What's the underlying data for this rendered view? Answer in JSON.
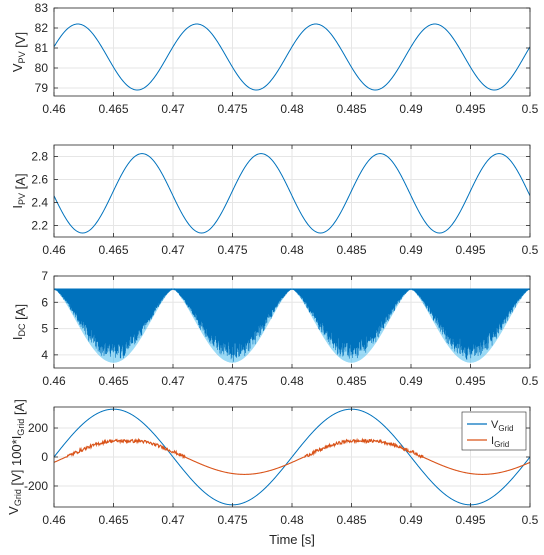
{
  "colors": {
    "series_blue": "#0072BD",
    "series_light_blue": "#4DBEEE",
    "series_orange": "#D95319",
    "grid": "#e6e6e6",
    "axis": "#262626"
  },
  "chart_data": [
    {
      "type": "line",
      "ylabel": "V",
      "ylabel_sub": "PV",
      "ylabel_suffix": " [V]",
      "xlabel": "",
      "xlim": [
        0.46,
        0.5
      ],
      "ylim": [
        78.6,
        83
      ],
      "xticks": [
        0.46,
        0.465,
        0.47,
        0.475,
        0.48,
        0.485,
        0.49,
        0.495,
        0.5
      ],
      "xtick_labels": [
        "0.46",
        "0.465",
        "0.47",
        "0.475",
        "0.48",
        "0.485",
        "0.49",
        "0.495",
        "0.5"
      ],
      "yticks": [
        79,
        80,
        81,
        82,
        83
      ],
      "ytick_labels": [
        "79",
        "80",
        "81",
        "82",
        "83"
      ],
      "grid": true,
      "series": [
        {
          "style": "sine",
          "mean": 80.55,
          "amplitude": 1.65,
          "period": 0.01,
          "peak_at": 0.462,
          "color": "#0072BD"
        }
      ]
    },
    {
      "type": "line",
      "ylabel": "I",
      "ylabel_sub": "PV",
      "ylabel_suffix": " [A]",
      "xlabel": "",
      "xlim": [
        0.46,
        0.5
      ],
      "ylim": [
        2.1,
        2.9
      ],
      "xticks": [
        0.46,
        0.465,
        0.47,
        0.475,
        0.48,
        0.485,
        0.49,
        0.495,
        0.5
      ],
      "xtick_labels": [
        "0.46",
        "0.465",
        "0.47",
        "0.475",
        "0.48",
        "0.485",
        "0.49",
        "0.495",
        "0.5"
      ],
      "yticks": [
        2.2,
        2.4,
        2.6,
        2.8
      ],
      "ytick_labels": [
        "2.2",
        "2.4",
        "2.6",
        "2.8"
      ],
      "grid": true,
      "series": [
        {
          "style": "sine",
          "mean": 2.48,
          "amplitude": 0.345,
          "period": 0.01,
          "peak_at": 0.4674,
          "color": "#0072BD"
        }
      ]
    },
    {
      "type": "area",
      "ylabel": "I",
      "ylabel_sub": "DC",
      "ylabel_suffix": " [A]",
      "xlabel": "",
      "xlim": [
        0.46,
        0.5
      ],
      "ylim": [
        3.5,
        7
      ],
      "xticks": [
        0.46,
        0.465,
        0.47,
        0.475,
        0.48,
        0.485,
        0.49,
        0.495,
        0.5
      ],
      "xtick_labels": [
        "0.46",
        "0.465",
        "0.47",
        "0.475",
        "0.48",
        "0.485",
        "0.49",
        "0.495",
        "0.5"
      ],
      "yticks": [
        4,
        5,
        6,
        7
      ],
      "ytick_labels": [
        "4",
        "5",
        "6",
        "7"
      ],
      "grid": true,
      "series": [
        {
          "style": "ripple_band",
          "upper": 6.5,
          "trough_min": 3.7,
          "trough_centers": [
            0.465,
            0.475,
            0.485,
            0.495
          ],
          "half_width": 0.005,
          "color": "#0072BD",
          "envelope_color": "#4DBEEE"
        }
      ]
    },
    {
      "type": "line",
      "ylabel": "V",
      "ylabel_sub": "Grid",
      "ylabel_mid": " [V]  100*I",
      "ylabel_sub2": "Grid",
      "ylabel_suffix": " [A]",
      "xlabel": "Time [s]",
      "xlim": [
        0.46,
        0.5
      ],
      "ylim": [
        -345,
        345
      ],
      "xticks": [
        0.46,
        0.465,
        0.47,
        0.475,
        0.48,
        0.485,
        0.49,
        0.495,
        0.5
      ],
      "xtick_labels": [
        "0.46",
        "0.465",
        "0.47",
        "0.475",
        "0.48",
        "0.485",
        "0.49",
        "0.495",
        "0.5"
      ],
      "yticks": [
        -200,
        0,
        200
      ],
      "ytick_labels": [
        "-200",
        "0",
        "200"
      ],
      "grid": true,
      "legend": {
        "location": "top-right"
      },
      "series": [
        {
          "name": "V",
          "name_sub": "Grid",
          "style": "sine",
          "mean": 0,
          "amplitude": 330,
          "period": 0.02,
          "peak_at": 0.465,
          "color": "#0072BD"
        },
        {
          "name": "I",
          "name_sub": "Grid",
          "style": "sine_noisy_positive",
          "mean": 0,
          "amplitude": 120,
          "period": 0.02,
          "peak_at": 0.466,
          "color": "#D95319"
        }
      ]
    }
  ]
}
